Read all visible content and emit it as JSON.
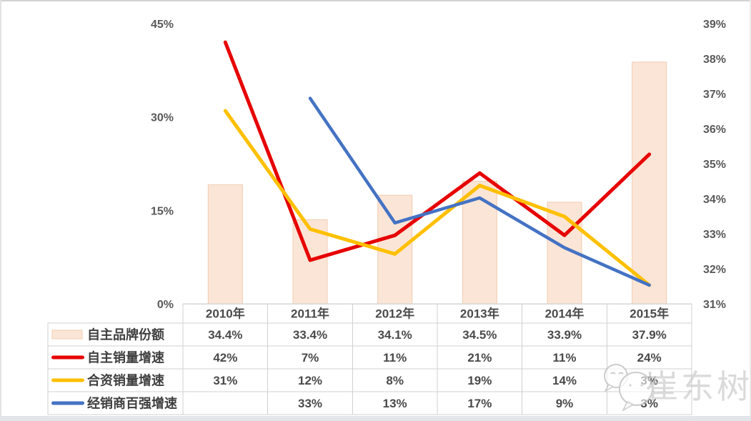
{
  "chart_data": {
    "type": "combo-bar-line",
    "categories": [
      "2010年",
      "2011年",
      "2012年",
      "2013年",
      "2014年",
      "2015年"
    ],
    "bar_series": {
      "name": "自主品牌份额",
      "axis": "right",
      "values": [
        34.4,
        33.4,
        34.1,
        34.5,
        33.9,
        37.9
      ],
      "color": "#FBE5D6",
      "border_color": "#F1CDB2"
    },
    "line_series": [
      {
        "name": "自主销量增速",
        "axis": "left",
        "values": [
          42,
          7,
          11,
          21,
          11,
          24
        ],
        "color": "#E60000"
      },
      {
        "name": "合资销量增速",
        "axis": "left",
        "values": [
          31,
          12,
          8,
          19,
          14,
          3
        ],
        "color": "#FFC000"
      },
      {
        "name": "经销商百强增速",
        "axis": "left",
        "values": [
          null,
          33,
          13,
          17,
          9,
          3
        ],
        "color": "#4472C4"
      }
    ],
    "left_axis": {
      "min": 0,
      "max": 45,
      "tick_values": [
        0,
        15,
        30,
        45
      ],
      "tick_labels": [
        "0%",
        "15%",
        "30%",
        "45%"
      ]
    },
    "right_axis": {
      "min": 31,
      "max": 39,
      "tick_values": [
        31,
        32,
        33,
        34,
        35,
        36,
        37,
        38,
        39
      ],
      "tick_labels": [
        "31%",
        "32%",
        "33%",
        "34%",
        "35%",
        "36%",
        "37%",
        "38%",
        "39%"
      ]
    },
    "grid": false,
    "legend_position": "table-left-column",
    "title": ""
  },
  "table": {
    "header": [
      "2010年",
      "2011年",
      "2012年",
      "2013年",
      "2014年",
      "2015年"
    ],
    "rows": [
      {
        "label": "自主品牌份额",
        "swatch": "bar-swatch",
        "values": [
          "34.4%",
          "33.4%",
          "34.1%",
          "34.5%",
          "33.9%",
          "37.9%"
        ]
      },
      {
        "label": "自主销量增速",
        "swatch": "red-line-swatch",
        "values": [
          "42%",
          "7%",
          "11%",
          "21%",
          "11%",
          "24%"
        ]
      },
      {
        "label": "合资销量增速",
        "swatch": "yellow-line-swatch",
        "values": [
          "31%",
          "12%",
          "8%",
          "19%",
          "14%",
          "3%"
        ]
      },
      {
        "label": "经销商百强增速",
        "swatch": "blue-line-swatch",
        "values": [
          "",
          "33%",
          "13%",
          "17%",
          "9%",
          "3%"
        ]
      }
    ]
  },
  "watermark": {
    "text": "崔东树",
    "icon": "wechat-chat-bubbles-icon"
  },
  "colors": {
    "bar_fill": "#FBE5D6",
    "bar_border": "#F1CDB2",
    "red_line": "#E60000",
    "yellow_line": "#FFC000",
    "blue_line": "#4472C4",
    "axis_text": "#595959",
    "table_text": "#4a4a4a",
    "table_border": "#d0d0d0",
    "baseline": "#d6d6d6"
  }
}
